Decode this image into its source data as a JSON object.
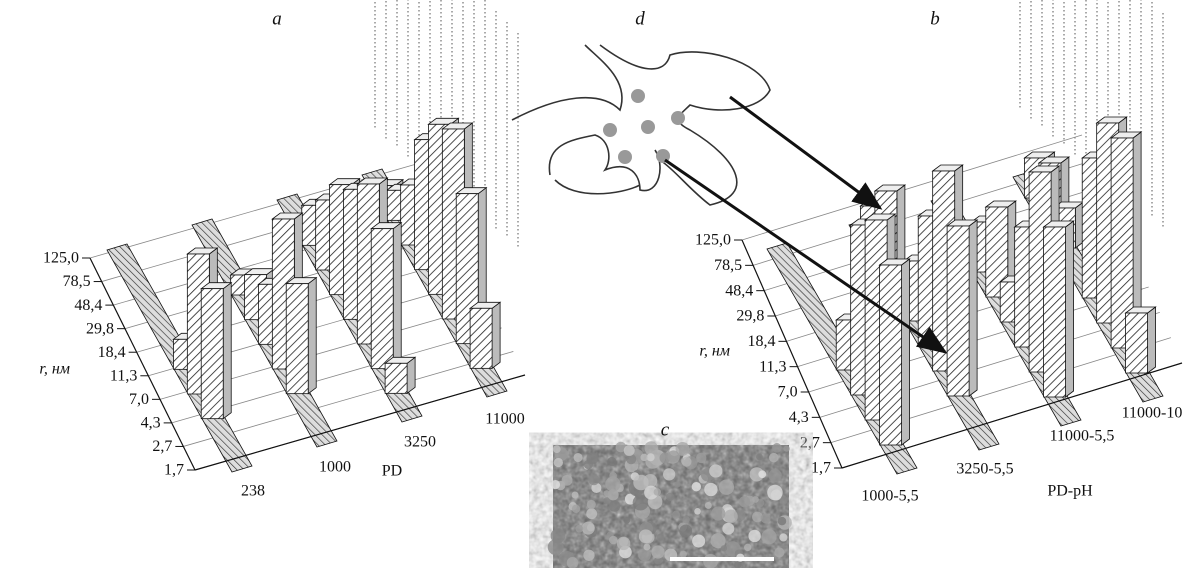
{
  "panels": {
    "a": {
      "label": "a",
      "y_axis_title": "r, нм",
      "y_ticks": [
        "125,0",
        "78,5",
        "48,4",
        "29,8",
        "18,4",
        "11,3",
        "7,0",
        "4,3",
        "2,7",
        "1,7"
      ],
      "x_ticks": [
        "238",
        "1000",
        "3250",
        "11000"
      ],
      "x_axis_title": "PD"
    },
    "b": {
      "label": "b",
      "y_axis_title": "r, нм",
      "y_ticks": [
        "125,0",
        "78,5",
        "48,4",
        "29,8",
        "18,4",
        "11,3",
        "7,0",
        "4,3",
        "2,7",
        "1,7"
      ],
      "x_ticks": [
        "1000-5,5",
        "3250-5,5",
        "11000-5,5",
        "11000-10"
      ],
      "x_axis_title": "PD-pH"
    },
    "c": {
      "label": "c"
    },
    "d": {
      "label": "d"
    }
  }
}
